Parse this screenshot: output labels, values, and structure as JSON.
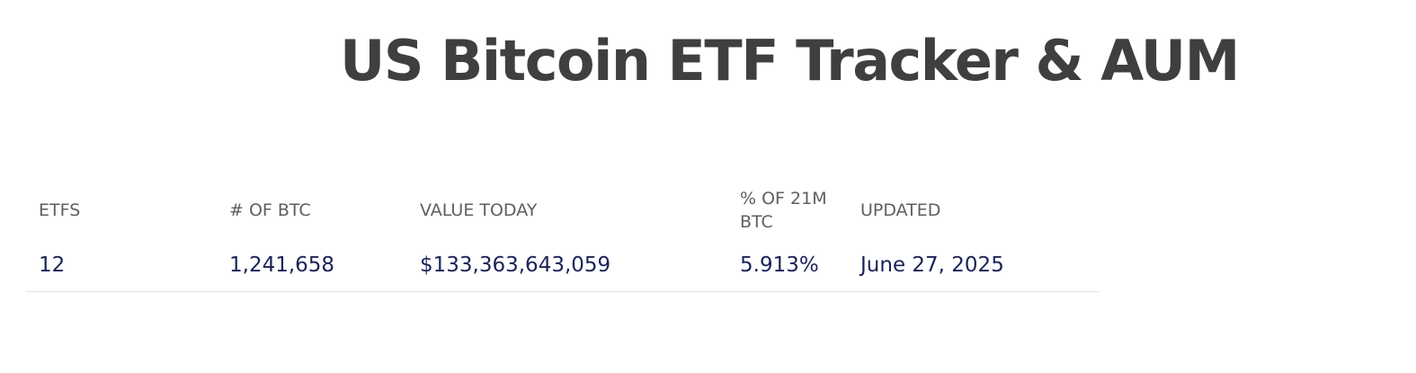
{
  "page": {
    "title": "US Bitcoin ETF Tracker & AUM"
  },
  "stats_table": {
    "headers": {
      "etfs": "ETFS",
      "num_btc": "# OF BTC",
      "value_today": "VALUE TODAY",
      "pct_of_supply": "% OF 21M BTC",
      "updated": "UPDATED"
    },
    "row": {
      "etfs": "12",
      "num_btc": "1,241,658",
      "value_today": "$133,363,643,059",
      "pct_of_supply": "5.913%",
      "updated": "June 27, 2025"
    }
  },
  "colors": {
    "title": "#3f3f3f",
    "header_text": "#5f5f5f",
    "value_text": "#1a2357",
    "divider": "#e3e3e3"
  }
}
